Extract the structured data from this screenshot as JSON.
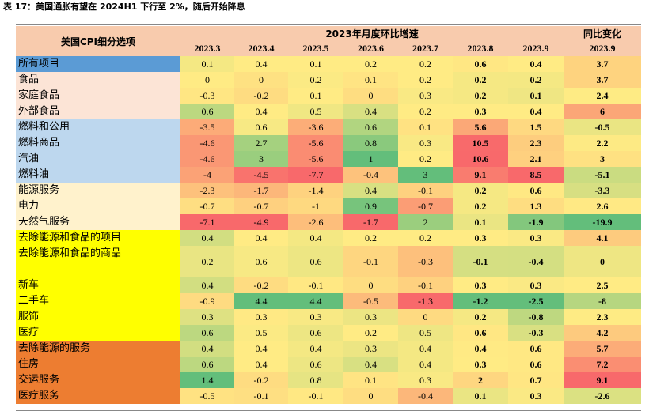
{
  "title": "表 17：美国通胀有望在 2024H1 下行至 2%，随后开始降息",
  "table": {
    "header": {
      "label": "美国CPI细分选项",
      "monthly": "2023年月度环比增速",
      "yoy": "同比变化"
    },
    "columns": [
      "2023.3",
      "2023.4",
      "2023.5",
      "2023.6",
      "2023.7",
      "2023.8",
      "2023.9",
      "2023.9"
    ],
    "color_scale": {
      "low": "#f8696b",
      "mid": "#ffeb84",
      "high": "#63be7b",
      "reversed_columns": [
        5,
        6,
        7
      ]
    },
    "groups": [
      {
        "color": "#5b9bd5",
        "rows": [
          {
            "label": "所有项目",
            "values": [
              0.1,
              0.4,
              0.1,
              0.2,
              0.2,
              0.6,
              0.4,
              3.7
            ]
          }
        ]
      },
      {
        "color": "#fce4d6",
        "rows": [
          {
            "label": "食品",
            "values": [
              0,
              0,
              0.2,
              0.1,
              0.2,
              0.2,
              0.2,
              3.7
            ]
          },
          {
            "label": "家庭食品",
            "values": [
              -0.3,
              -0.2,
              0.1,
              0,
              0.3,
              0.2,
              0.1,
              2.4
            ]
          },
          {
            "label": "外部食品",
            "values": [
              0.6,
              0.4,
              0.5,
              0.4,
              0.2,
              0.3,
              0.4,
              6
            ]
          }
        ]
      },
      {
        "color": "#bdd7ee",
        "rows": [
          {
            "label": "燃料和公用",
            "values": [
              -3.5,
              0.6,
              -3.6,
              0.6,
              0.1,
              5.6,
              1.5,
              -0.5
            ]
          },
          {
            "label": "燃料商品",
            "values": [
              -4.6,
              2.7,
              -5.6,
              0.8,
              0.3,
              10.5,
              2.3,
              2.2
            ]
          },
          {
            "label": "汽油",
            "values": [
              -4.6,
              3,
              -5.6,
              1,
              0.2,
              10.6,
              2.1,
              3
            ]
          },
          {
            "label": "燃料油",
            "values": [
              -4,
              -4.5,
              -7.7,
              -0.4,
              3,
              9.1,
              8.5,
              -5.1
            ]
          }
        ]
      },
      {
        "color": "#fff2cc",
        "rows": [
          {
            "label": "能源服务",
            "values": [
              -2.3,
              -1.7,
              -1.4,
              0.4,
              -0.1,
              0.2,
              0.6,
              -3.3
            ]
          },
          {
            "label": "电力",
            "values": [
              -0.7,
              -0.7,
              -1,
              0.9,
              -0.7,
              0.2,
              1.3,
              2.6
            ]
          },
          {
            "label": "天然气服务",
            "values": [
              -7.1,
              -4.9,
              -2.6,
              -1.7,
              2,
              0.1,
              -1.9,
              -19.9
            ]
          }
        ]
      },
      {
        "color": "#ffff00",
        "rows": [
          {
            "label": "去除能源和食品的项目",
            "values": [
              0.4,
              0.4,
              0.4,
              0.2,
              0.2,
              0.3,
              0.3,
              4.1
            ]
          },
          {
            "label": "去除能源和食品的商品",
            "values": [
              0.2,
              0.6,
              0.6,
              -0.1,
              -0.3,
              -0.1,
              -0.4,
              0
            ]
          },
          {
            "label": "新车",
            "values": [
              0.4,
              -0.2,
              -0.1,
              0,
              -0.1,
              0.3,
              0.3,
              2.5
            ]
          },
          {
            "label": "二手车",
            "values": [
              -0.9,
              4.4,
              4.4,
              -0.5,
              -1.3,
              -1.2,
              -2.5,
              -8
            ]
          },
          {
            "label": "服饰",
            "values": [
              0.3,
              0.3,
              0.3,
              0.3,
              0,
              0.2,
              -0.8,
              2.3
            ]
          },
          {
            "label": "医疗",
            "values": [
              0.6,
              0.5,
              0.6,
              0.2,
              0.5,
              0.6,
              -0.3,
              4.2
            ]
          }
        ]
      },
      {
        "color": "#ed7d31",
        "rows": [
          {
            "label": "去除能源的服务",
            "values": [
              0.4,
              0.4,
              0.4,
              0.3,
              0.4,
              0.4,
              0.6,
              5.7
            ]
          },
          {
            "label": "住房",
            "values": [
              0.6,
              0.4,
              0.6,
              0.4,
              0.4,
              0.3,
              0.6,
              7.2
            ]
          },
          {
            "label": "交运服务",
            "values": [
              1.4,
              -0.2,
              0.8,
              0.1,
              0.3,
              2,
              0.7,
              9.1
            ]
          },
          {
            "label": "医疗服务",
            "values": [
              -0.5,
              -0.1,
              -0.1,
              0,
              -0.4,
              0.1,
              0.3,
              -2.6
            ]
          }
        ]
      }
    ]
  }
}
